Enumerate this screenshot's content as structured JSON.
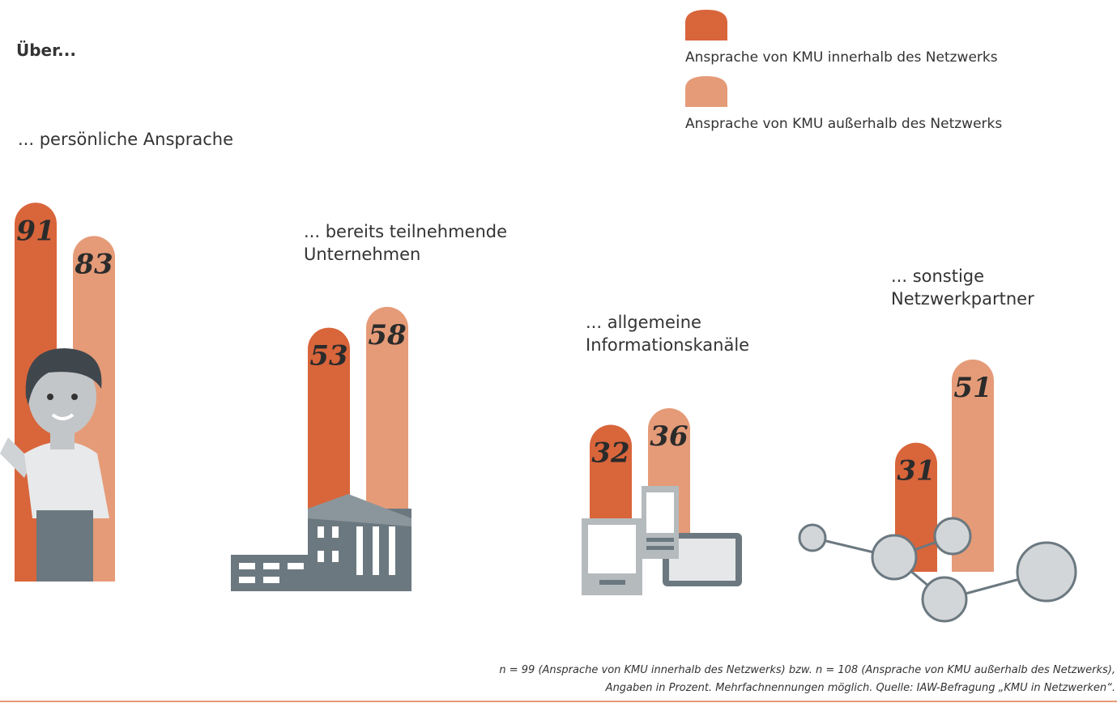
{
  "chart_data": {
    "type": "bar",
    "title": "Über...",
    "categories": [
      "... persönliche Ansprache",
      "... bereits teilnehmende Unternehmen",
      "... allgemeine Informationskanäle",
      "... sonstige Netzwerkpartner"
    ],
    "series": [
      {
        "name": "Ansprache von KMU innerhalb des Netzwerks",
        "color": "#d9653b",
        "values": [
          91,
          53,
          32,
          31
        ]
      },
      {
        "name": "Ansprache von KMU außerhalb des Netzwerks",
        "color": "#e59b78",
        "values": [
          83,
          58,
          36,
          51
        ]
      }
    ],
    "note": [
      "n = 99 (Ansprache von KMU innerhalb des Netzwerks) bzw. n = 108 (Ansprache von KMU außerhalb des Netzwerks),",
      "Angaben in Prozent. Mehrfachnennungen möglich. Quelle: IAW-Befragung „KMU in Netzwerken“."
    ]
  }
}
